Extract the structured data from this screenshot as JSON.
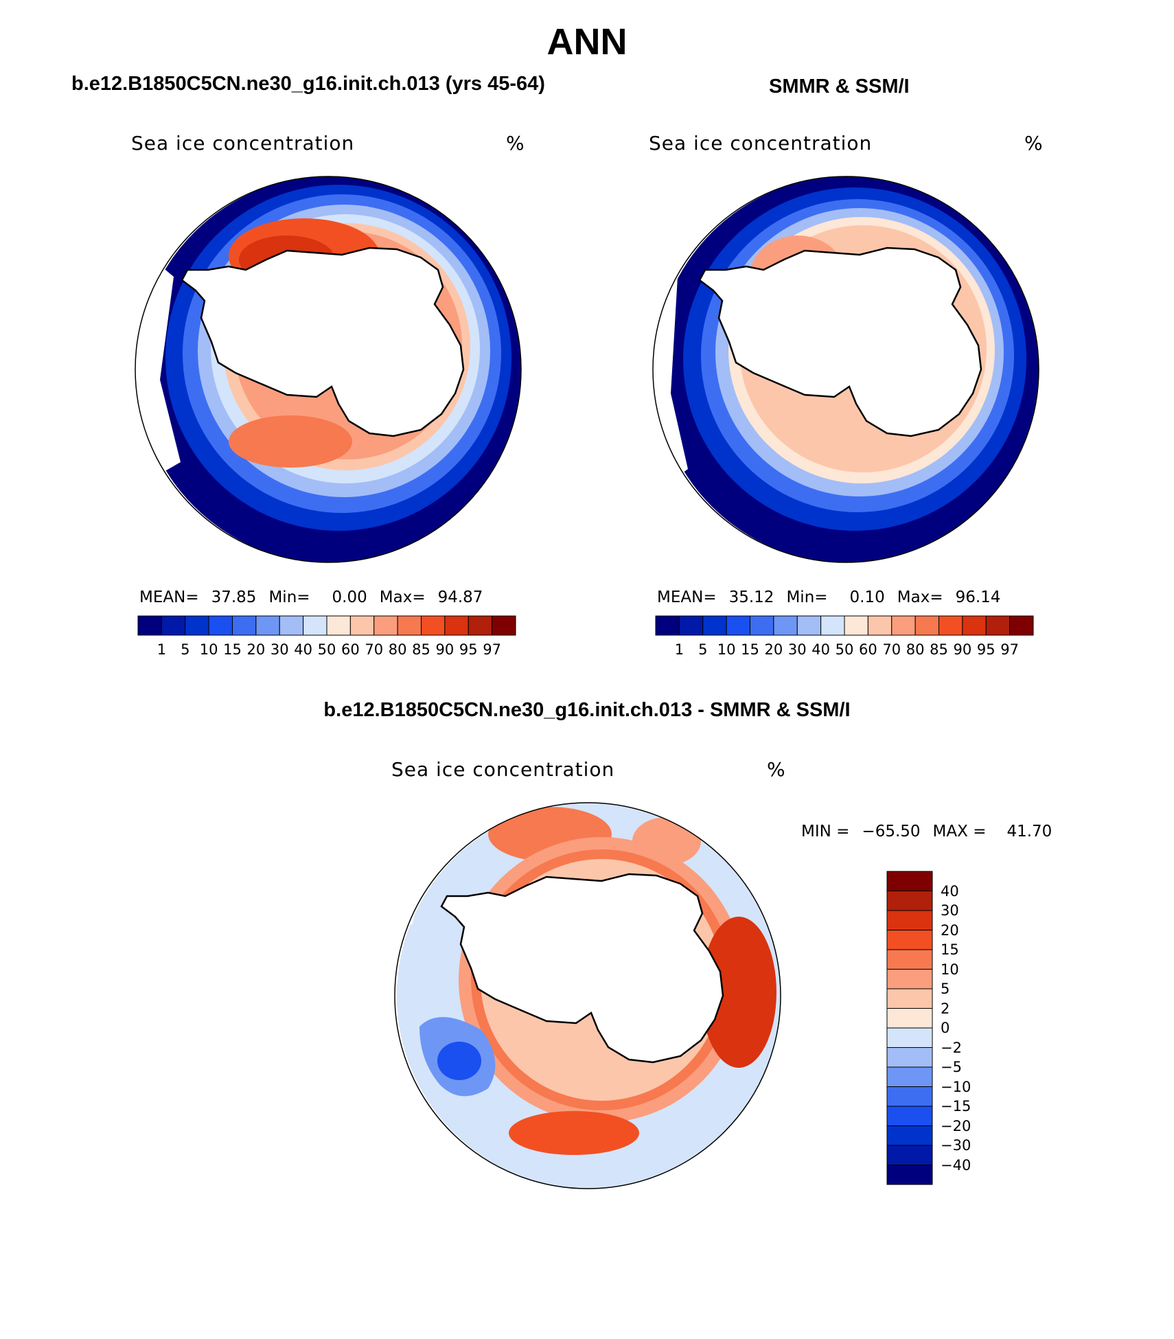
{
  "figure": {
    "title": "ANN"
  },
  "panels": {
    "model": {
      "title": "b.e12.B1850C5CN.ne30_g16.init.ch.013 (yrs 45-64)",
      "variable": "Sea ice concentration",
      "units": "%",
      "stats": {
        "mean_label": "MEAN=",
        "mean_value": "37.85",
        "min_label": "Min=",
        "min_value": "0.00",
        "max_label": "Max=",
        "max_value": "94.87"
      }
    },
    "obs": {
      "title": "SMMR & SSM/I",
      "variable": "Sea ice concentration",
      "units": "%",
      "stats": {
        "mean_label": "MEAN=",
        "mean_value": "35.12",
        "min_label": "Min=",
        "min_value": "0.10",
        "max_label": "Max=",
        "max_value": "96.14"
      }
    },
    "diff": {
      "title": "b.e12.B1850C5CN.ne30_g16.init.ch.013 - SMMR & SSM/I",
      "variable": "Sea ice concentration",
      "units": "%",
      "stats": {
        "min_label": "MIN =",
        "min_value": "−65.50",
        "max_label": "MAX =",
        "max_value": "41.70"
      }
    }
  },
  "colorbars": {
    "abs": {
      "colors": [
        "#00007f",
        "#0019a8",
        "#0033cc",
        "#1a4ff0",
        "#3d6ef2",
        "#6e96f5",
        "#a3bdf7",
        "#d4e4fa",
        "#fde7d7",
        "#fcc6ab",
        "#fa9e7e",
        "#f7794f",
        "#f25022",
        "#d93310",
        "#b0200a",
        "#7f0000"
      ],
      "tick_labels": [
        "1",
        "5",
        "10",
        "15",
        "20",
        "30",
        "40",
        "50",
        "60",
        "70",
        "80",
        "85",
        "90",
        "95",
        "97"
      ]
    },
    "diff": {
      "colors": [
        "#00007f",
        "#0019a8",
        "#0033cc",
        "#1a4ff0",
        "#3d6ef2",
        "#6e96f5",
        "#a3bdf7",
        "#d4e4fa",
        "#fde7d7",
        "#fcc6ab",
        "#fa9e7e",
        "#f7794f",
        "#f25022",
        "#d93310",
        "#b0200a",
        "#7f0000"
      ],
      "tick_labels": [
        "−40",
        "−30",
        "−20",
        "−15",
        "−10",
        "−5",
        "−2",
        "0",
        "2",
        "5",
        "10",
        "15",
        "20",
        "30",
        "40"
      ]
    }
  }
}
